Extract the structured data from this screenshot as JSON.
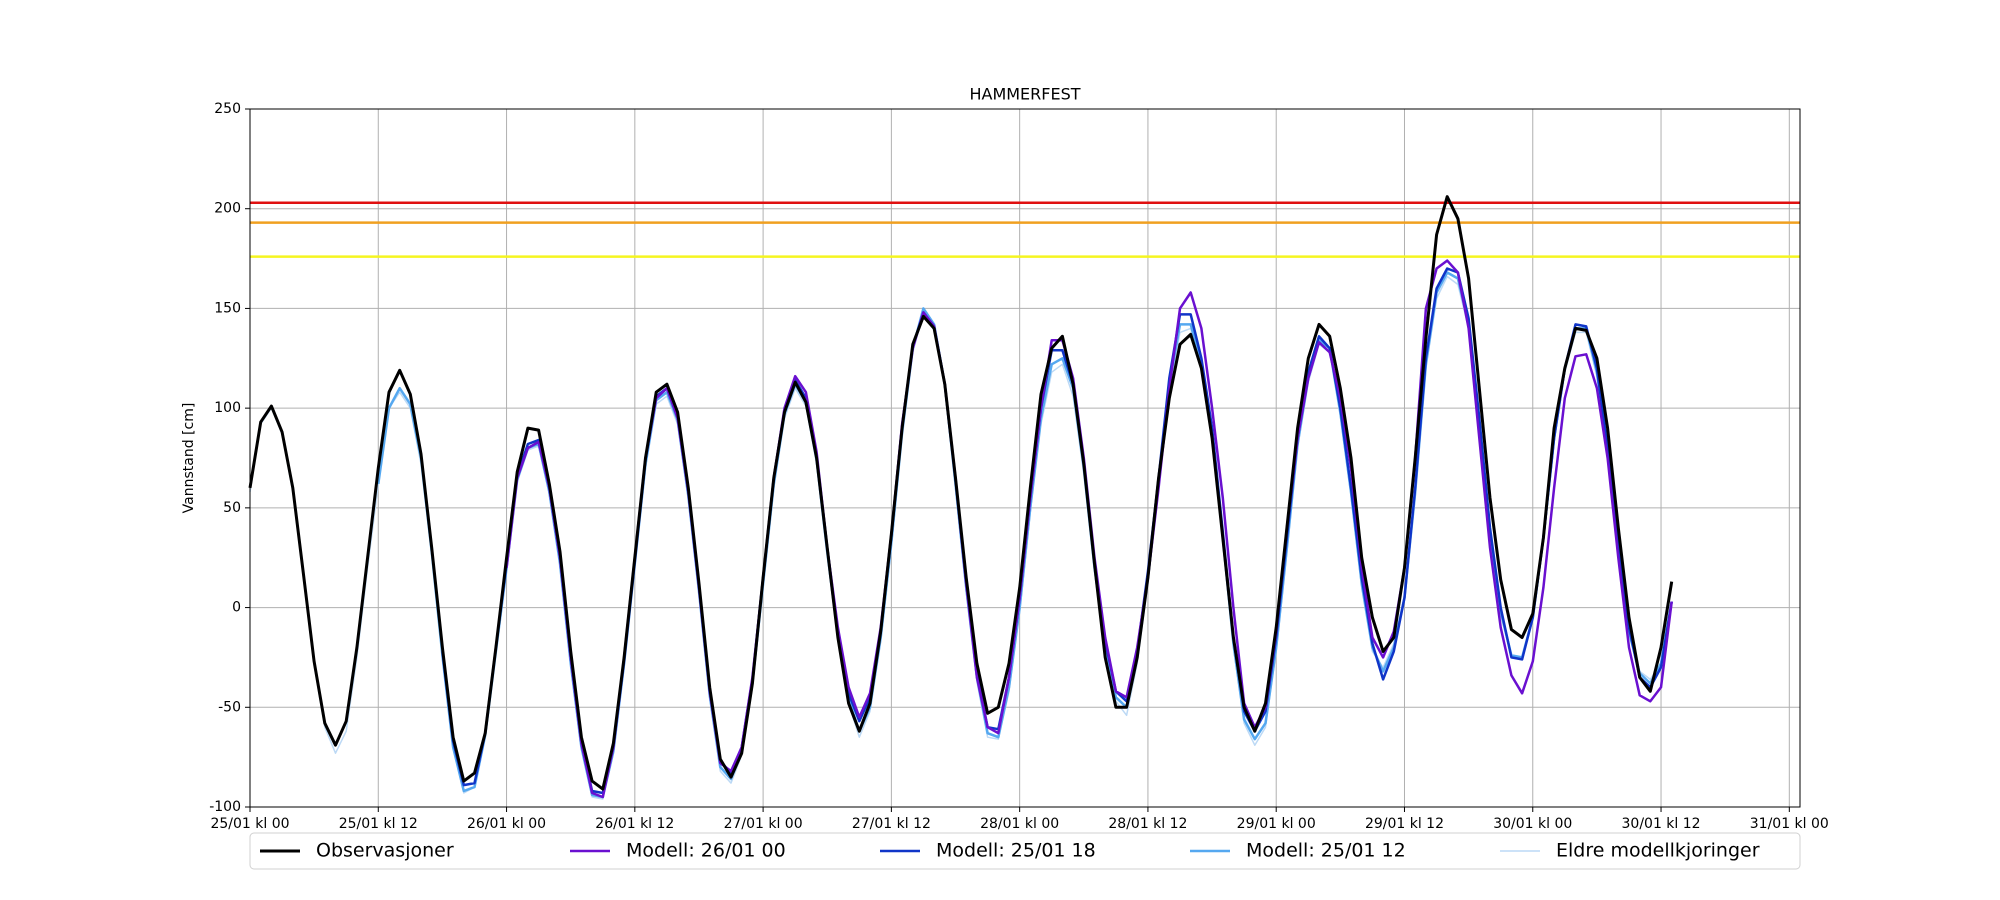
{
  "chart_data": {
    "type": "line",
    "title": "HAMMERFEST",
    "y_label": "Vannstand [cm]",
    "x": [
      0,
      1,
      2,
      3,
      4,
      5,
      6,
      7,
      8,
      9,
      10,
      11,
      12,
      13,
      14,
      15,
      16,
      17,
      18,
      19,
      20,
      21,
      22,
      23,
      24,
      25,
      26,
      27,
      28,
      29,
      30,
      31,
      32,
      33,
      34,
      35,
      36,
      37,
      38,
      39,
      40,
      41,
      42,
      43,
      44,
      45,
      46,
      47,
      48,
      49,
      50,
      51,
      52,
      53,
      54,
      55,
      56,
      57,
      58,
      59,
      60,
      61,
      62,
      63,
      64,
      65,
      66,
      67,
      68,
      69,
      70,
      71,
      72,
      73,
      74,
      75,
      76,
      77,
      78,
      79,
      80,
      81,
      82,
      83,
      84,
      85,
      86,
      87,
      88,
      89,
      90,
      91,
      92,
      93,
      94,
      95,
      96,
      97,
      98,
      99,
      100,
      101,
      102,
      103,
      104,
      105,
      106,
      107,
      108,
      109,
      110,
      111,
      112,
      113,
      114,
      115,
      116,
      117,
      118,
      119,
      120,
      121,
      122,
      123,
      124,
      125,
      126,
      127,
      128,
      129,
      130,
      131,
      132,
      133
    ],
    "series": [
      {
        "name": "Observasjoner",
        "color": "#000000",
        "width": 3,
        "values": [
          60,
          93,
          101,
          88,
          60,
          17,
          -27,
          -58,
          -69,
          -57,
          -20,
          25,
          70,
          108,
          119,
          107,
          77,
          30,
          -20,
          -65,
          -87,
          -83,
          -63,
          -20,
          25,
          68,
          90,
          89,
          62,
          28,
          -22,
          -65,
          -87,
          -91,
          -68,
          -25,
          25,
          75,
          108,
          112,
          98,
          60,
          12,
          -40,
          -76,
          -85,
          -73,
          -38,
          15,
          65,
          98,
          113,
          103,
          75,
          30,
          -15,
          -48,
          -62,
          -48,
          -12,
          37,
          90,
          132,
          146,
          140,
          112,
          65,
          15,
          -28,
          -53,
          -50,
          -28,
          10,
          60,
          107,
          130,
          136,
          112,
          72,
          22,
          -25,
          -50,
          -50,
          -25,
          15,
          65,
          105,
          132,
          137,
          120,
          85,
          35,
          -15,
          -50,
          -62,
          -48,
          -10,
          40,
          90,
          125,
          142,
          136,
          110,
          75,
          25,
          -5,
          -22,
          -15,
          20,
          75,
          135,
          187,
          206,
          195,
          165,
          110,
          55,
          14,
          -11,
          -15,
          -3,
          35,
          90,
          120,
          140,
          139,
          125,
          90,
          40,
          -5,
          -35,
          -42,
          -20,
          13
        ]
      },
      {
        "name": "Modell: 26/01 00",
        "color": "#6a10d0",
        "width": 2.5,
        "values": [
          null,
          null,
          null,
          null,
          null,
          null,
          null,
          null,
          null,
          null,
          null,
          null,
          null,
          null,
          null,
          null,
          null,
          null,
          null,
          null,
          null,
          null,
          null,
          null,
          20,
          65,
          80,
          83,
          60,
          25,
          -25,
          -68,
          -93,
          -95,
          -70,
          -25,
          25,
          75,
          105,
          110,
          95,
          58,
          10,
          -42,
          -78,
          -82,
          -70,
          -35,
          15,
          65,
          100,
          116,
          108,
          78,
          30,
          -10,
          -40,
          -55,
          -43,
          -10,
          37,
          92,
          130,
          148,
          141,
          112,
          65,
          12,
          -35,
          -60,
          -63,
          -35,
          5,
          55,
          100,
          134,
          134,
          115,
          75,
          25,
          -15,
          -42,
          -45,
          -20,
          15,
          60,
          110,
          150,
          158,
          140,
          100,
          55,
          0,
          -48,
          -60,
          -50,
          -12,
          40,
          85,
          115,
          133,
          128,
          105,
          70,
          20,
          -15,
          -25,
          -12,
          20,
          75,
          150,
          170,
          174,
          168,
          140,
          85,
          30,
          -10,
          -34,
          -43,
          -27,
          10,
          60,
          105,
          126,
          127,
          110,
          75,
          25,
          -20,
          -44,
          -47,
          -40,
          3
        ]
      },
      {
        "name": "Modell: 25/01 18",
        "color": "#1035c8",
        "width": 2.5,
        "values": [
          null,
          null,
          null,
          null,
          null,
          null,
          null,
          null,
          null,
          null,
          null,
          null,
          null,
          null,
          null,
          null,
          null,
          null,
          -22,
          -67,
          -89,
          -88,
          -63,
          -20,
          22,
          66,
          82,
          84,
          60,
          25,
          -25,
          -68,
          -92,
          -93,
          -70,
          -27,
          23,
          74,
          106,
          110,
          96,
          58,
          10,
          -42,
          -77,
          -83,
          -70,
          -36,
          15,
          65,
          99,
          114,
          105,
          76,
          30,
          -12,
          -43,
          -57,
          -45,
          -12,
          36,
          91,
          131,
          148,
          141,
          112,
          64,
          12,
          -33,
          -60,
          -61,
          -35,
          5,
          55,
          100,
          129,
          129,
          112,
          73,
          23,
          -17,
          -42,
          -47,
          -22,
          18,
          65,
          115,
          147,
          147,
          125,
          90,
          38,
          -15,
          -52,
          -62,
          -52,
          -15,
          35,
          85,
          118,
          136,
          130,
          100,
          60,
          15,
          -18,
          -36,
          -22,
          5,
          60,
          125,
          160,
          170,
          168,
          145,
          95,
          40,
          0,
          -25,
          -26,
          -5,
          35,
          85,
          120,
          142,
          141,
          120,
          80,
          30,
          -10,
          -35,
          -40,
          -30,
          3
        ]
      },
      {
        "name": "Modell: 25/01 12",
        "color": "#55a8f0",
        "width": 2.5,
        "values": [
          null,
          null,
          null,
          null,
          null,
          null,
          null,
          null,
          null,
          null,
          null,
          null,
          62,
          100,
          110,
          102,
          75,
          28,
          -24,
          -70,
          -92,
          -90,
          -64,
          -22,
          20,
          64,
          80,
          82,
          58,
          22,
          -28,
          -70,
          -94,
          -95,
          -72,
          -28,
          22,
          72,
          104,
          108,
          94,
          56,
          8,
          -44,
          -80,
          -86,
          -72,
          -38,
          12,
          62,
          97,
          112,
          103,
          74,
          28,
          -14,
          -46,
          -62,
          -50,
          -15,
          33,
          88,
          130,
          150,
          142,
          112,
          62,
          10,
          -35,
          -63,
          -65,
          -40,
          0,
          50,
          95,
          122,
          125,
          110,
          70,
          20,
          -20,
          -45,
          -50,
          -25,
          15,
          62,
          112,
          142,
          142,
          122,
          86,
          35,
          -18,
          -56,
          -66,
          -58,
          -20,
          30,
          82,
          115,
          134,
          130,
          98,
          58,
          12,
          -20,
          -32,
          -20,
          5,
          58,
          122,
          158,
          168,
          165,
          142,
          92,
          38,
          -2,
          -24,
          -25,
          -5,
          35,
          85,
          120,
          140,
          140,
          118,
          78,
          28,
          -12,
          -33,
          -38,
          -28,
          3
        ]
      },
      {
        "name": "Eldre modellkjoringer",
        "color": "#bcd9f5",
        "width": 1.5,
        "values": [
          58,
          92,
          100,
          87,
          58,
          15,
          -29,
          -60,
          -73,
          -62,
          -25,
          20,
          62,
          100,
          108,
          100,
          72,
          26,
          -25,
          -70,
          -93,
          -90,
          -64,
          -22,
          20,
          63,
          79,
          81,
          57,
          22,
          -28,
          -71,
          -95,
          -96,
          -73,
          -30,
          20,
          70,
          102,
          106,
          92,
          55,
          7,
          -45,
          -82,
          -88,
          -74,
          -40,
          10,
          60,
          95,
          110,
          101,
          72,
          26,
          -16,
          -48,
          -65,
          -52,
          -17,
          30,
          85,
          128,
          148,
          140,
          110,
          60,
          8,
          -37,
          -65,
          -66,
          -42,
          -2,
          48,
          92,
          118,
          122,
          106,
          67,
          18,
          -22,
          -47,
          -54,
          -28,
          12,
          60,
          108,
          138,
          140,
          120,
          84,
          33,
          -20,
          -58,
          -69,
          -60,
          -22,
          28,
          80,
          113,
          132,
          128,
          96,
          56,
          10,
          -22,
          -30,
          -18,
          5,
          55,
          120,
          155,
          166,
          162,
          140,
          90,
          36,
          -4,
          -24,
          -25,
          -5,
          33,
          83,
          118,
          138,
          138,
          116,
          76,
          26,
          -14,
          -32,
          -36,
          -28,
          2
        ]
      }
    ],
    "thresholds": [
      {
        "value": 203,
        "color": "#e01010"
      },
      {
        "value": 193,
        "color": "#f0a020"
      },
      {
        "value": 176,
        "color": "#f5f520"
      }
    ],
    "xlim": [
      0,
      145
    ],
    "xticks": [
      {
        "value": 0,
        "label": "25/01 kl 00"
      },
      {
        "value": 12,
        "label": "25/01 kl 12"
      },
      {
        "value": 24,
        "label": "26/01 kl 00"
      },
      {
        "value": 36,
        "label": "26/01 kl 12"
      },
      {
        "value": 48,
        "label": "27/01 kl 00"
      },
      {
        "value": 60,
        "label": "27/01 kl 12"
      },
      {
        "value": 72,
        "label": "28/01 kl 00"
      },
      {
        "value": 84,
        "label": "28/01 kl 12"
      },
      {
        "value": 96,
        "label": "29/01 kl 00"
      },
      {
        "value": 108,
        "label": "29/01 kl 12"
      },
      {
        "value": 120,
        "label": "30/01 kl 00"
      },
      {
        "value": 132,
        "label": "30/01 kl 12"
      },
      {
        "value": 144,
        "label": "31/01 kl 00"
      }
    ],
    "ylim": [
      -100,
      250
    ],
    "yticks": [
      -100,
      -50,
      0,
      50,
      100,
      150,
      200,
      250
    ],
    "grid": true,
    "legend": "bottom"
  }
}
